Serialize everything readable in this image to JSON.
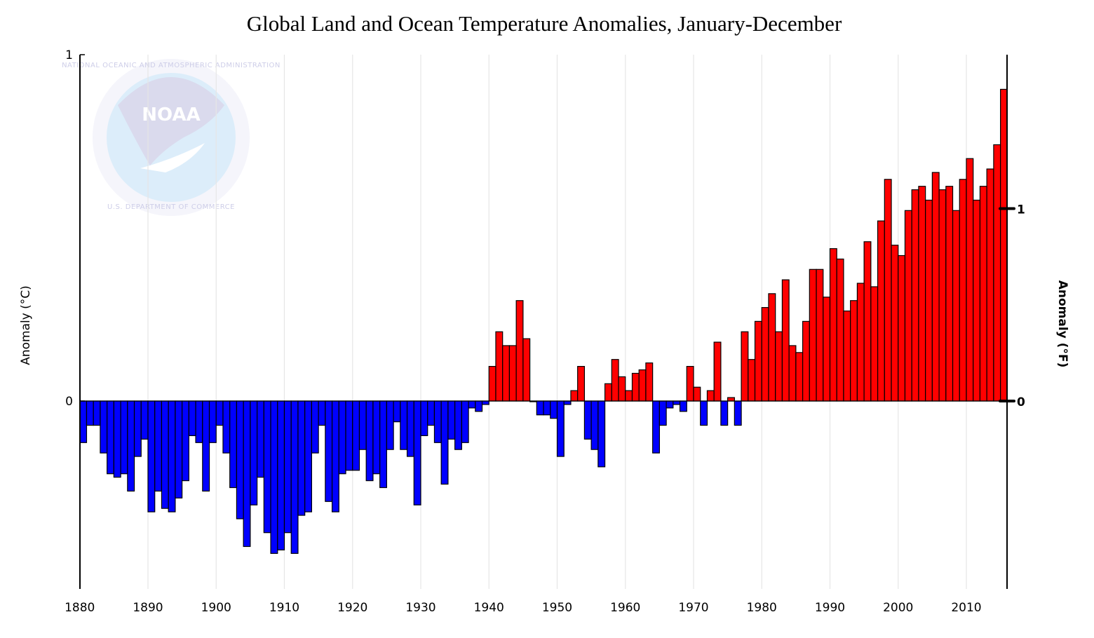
{
  "chart_data": {
    "type": "bar",
    "title": "Global Land and Ocean Temperature Anomalies, January-December",
    "ylabel_left": "Anomaly (°C)",
    "ylabel_right": "Anomaly (°F)",
    "xlim": [
      1880,
      2015
    ],
    "ylim_c": [
      -0.55,
      1.0
    ],
    "left_ticks": [
      {
        "value": 1,
        "label": "1"
      },
      {
        "value": 0,
        "label": "0"
      }
    ],
    "right_ticks": [
      {
        "value": 1,
        "label": "1"
      },
      {
        "value": 0,
        "label": "0"
      }
    ],
    "x_ticks": [
      1880,
      1890,
      1900,
      1910,
      1920,
      1930,
      1940,
      1950,
      1960,
      1970,
      1980,
      1990,
      2000,
      2010
    ],
    "x_tick_labels": [
      "1880",
      "1890",
      "1900",
      "1910",
      "1920",
      "1930",
      "1940",
      "1950",
      "1960",
      "1970",
      "1980",
      "1990",
      "2000",
      "2010"
    ],
    "grid": "vertical",
    "positive_color": "#ff0000",
    "negative_color": "#0000ff",
    "bar_edge_color": "#000000",
    "years": [
      1880,
      1881,
      1882,
      1883,
      1884,
      1885,
      1886,
      1887,
      1888,
      1889,
      1890,
      1891,
      1892,
      1893,
      1894,
      1895,
      1896,
      1897,
      1898,
      1899,
      1900,
      1901,
      1902,
      1903,
      1904,
      1905,
      1906,
      1907,
      1908,
      1909,
      1910,
      1911,
      1912,
      1913,
      1914,
      1915,
      1916,
      1917,
      1918,
      1919,
      1920,
      1921,
      1922,
      1923,
      1924,
      1925,
      1926,
      1927,
      1928,
      1929,
      1930,
      1931,
      1932,
      1933,
      1934,
      1935,
      1936,
      1937,
      1938,
      1939,
      1940,
      1941,
      1942,
      1943,
      1944,
      1945,
      1946,
      1947,
      1948,
      1949,
      1950,
      1951,
      1952,
      1953,
      1954,
      1955,
      1956,
      1957,
      1958,
      1959,
      1960,
      1961,
      1962,
      1963,
      1964,
      1965,
      1966,
      1967,
      1968,
      1969,
      1970,
      1971,
      1972,
      1973,
      1974,
      1975,
      1976,
      1977,
      1978,
      1979,
      1980,
      1981,
      1982,
      1983,
      1984,
      1985,
      1986,
      1987,
      1988,
      1989,
      1990,
      1991,
      1992,
      1993,
      1994,
      1995,
      1996,
      1997,
      1998,
      1999,
      2000,
      2001,
      2002,
      2003,
      2004,
      2005,
      2006,
      2007,
      2008,
      2009,
      2010,
      2011,
      2012,
      2013,
      2014,
      2015
    ],
    "values": [
      -0.12,
      -0.07,
      -0.07,
      -0.15,
      -0.21,
      -0.22,
      -0.21,
      -0.26,
      -0.16,
      -0.11,
      -0.32,
      -0.26,
      -0.31,
      -0.32,
      -0.28,
      -0.23,
      -0.1,
      -0.12,
      -0.26,
      -0.12,
      -0.07,
      -0.15,
      -0.25,
      -0.34,
      -0.42,
      -0.3,
      -0.22,
      -0.38,
      -0.44,
      -0.43,
      -0.38,
      -0.44,
      -0.33,
      -0.32,
      -0.15,
      -0.07,
      -0.29,
      -0.32,
      -0.21,
      -0.2,
      -0.2,
      -0.14,
      -0.23,
      -0.21,
      -0.25,
      -0.14,
      -0.06,
      -0.14,
      -0.16,
      -0.3,
      -0.1,
      -0.07,
      -0.12,
      -0.24,
      -0.11,
      -0.14,
      -0.12,
      -0.02,
      -0.03,
      -0.01,
      0.1,
      0.2,
      0.16,
      0.16,
      0.29,
      0.18,
      0.0,
      -0.04,
      -0.04,
      -0.05,
      -0.16,
      -0.01,
      0.03,
      0.1,
      -0.11,
      -0.14,
      -0.19,
      0.05,
      0.12,
      0.07,
      0.03,
      0.08,
      0.09,
      0.11,
      -0.15,
      -0.07,
      -0.02,
      -0.01,
      -0.03,
      0.1,
      0.04,
      -0.07,
      0.03,
      0.17,
      -0.07,
      0.01,
      -0.07,
      0.2,
      0.12,
      0.23,
      0.27,
      0.31,
      0.2,
      0.35,
      0.16,
      0.14,
      0.23,
      0.38,
      0.38,
      0.3,
      0.44,
      0.41,
      0.26,
      0.29,
      0.34,
      0.46,
      0.33,
      0.52,
      0.64,
      0.45,
      0.42,
      0.55,
      0.61,
      0.62,
      0.58,
      0.66,
      0.61,
      0.62,
      0.55,
      0.64,
      0.7,
      0.58,
      0.62,
      0.67,
      0.74,
      0.9
    ]
  }
}
